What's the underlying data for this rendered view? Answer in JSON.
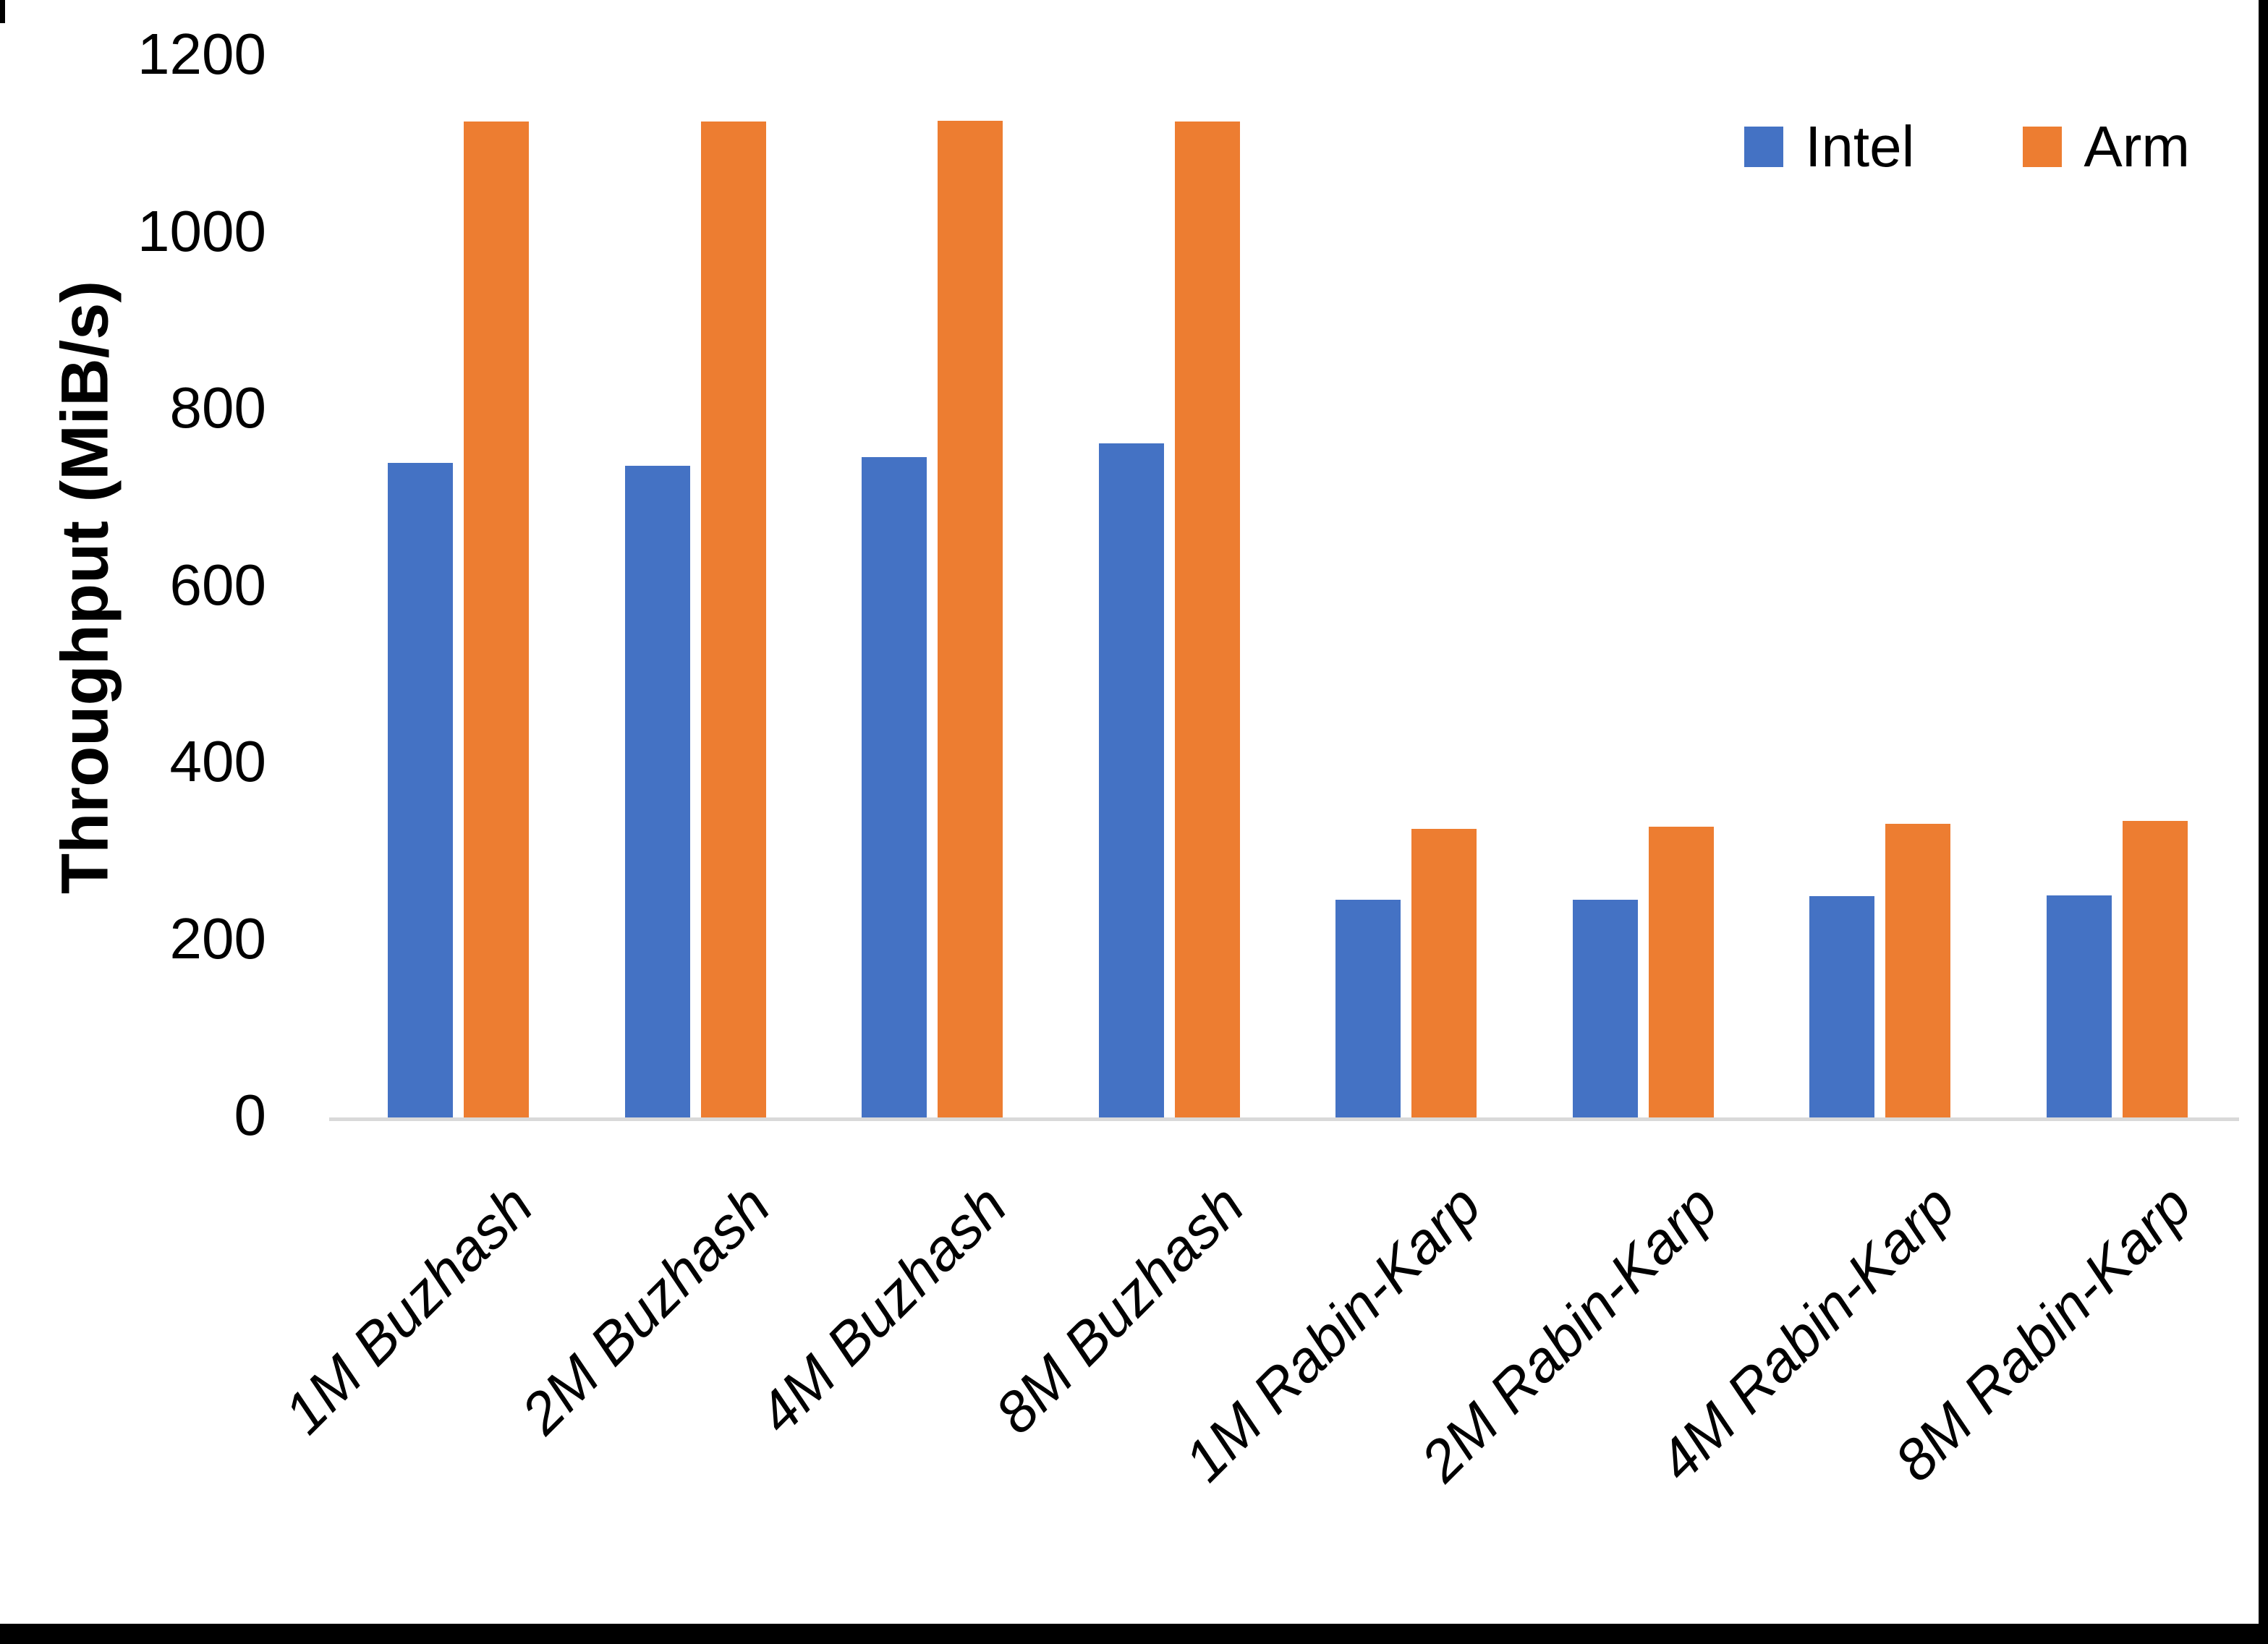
{
  "frame": {
    "border_color": "#000000",
    "background": "#ffffff",
    "axis_line_color": "#D9D9D9"
  },
  "chart_data": {
    "type": "bar",
    "title": "",
    "xlabel": "",
    "ylabel": "Throughput (MiB/s)",
    "categories": [
      "1M Buzhash",
      "2M Buzhash",
      "4M Buzhash",
      "8M Buzhash",
      "1M Rabin-Karp",
      "2M Rabin-Karp",
      "4M Rabin-Karp",
      "8M Rabin-Karp"
    ],
    "series": [
      {
        "name": "Intel",
        "color": "#4472C4",
        "values": [
          740,
          737,
          747,
          762,
          246,
          246,
          250,
          251
        ]
      },
      {
        "name": "Arm",
        "color": "#ED7D31",
        "values": [
          1126,
          1126,
          1127,
          1126,
          326,
          329,
          332,
          335
        ]
      }
    ],
    "ylim": [
      0,
      1200
    ],
    "yticks": [
      0,
      200,
      400,
      600,
      800,
      1000,
      1200
    ],
    "grid": false,
    "legend_position": "top-right"
  }
}
